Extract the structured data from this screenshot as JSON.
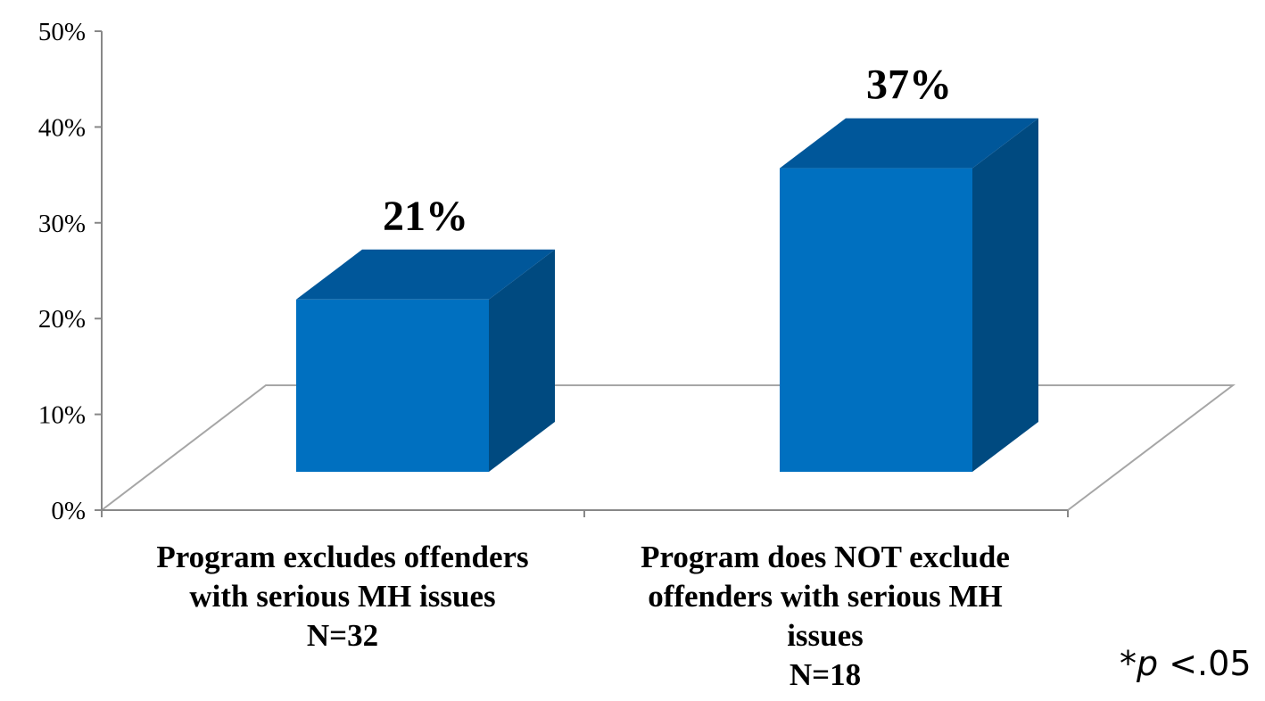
{
  "chart_data": {
    "type": "bar",
    "style": "3d-column",
    "categories": [
      [
        "Program excludes offenders",
        "with serious MH issues",
        "N=32"
      ],
      [
        "Program does NOT exclude",
        "offenders with serious MH",
        "issues",
        "N=18"
      ]
    ],
    "values": [
      21,
      37
    ],
    "data_labels": [
      "21%",
      "37%"
    ],
    "y_ticks": [
      "0%",
      "10%",
      "20%",
      "30%",
      "40%",
      "50%"
    ],
    "ylim": [
      0,
      50
    ],
    "grid": false,
    "legend": "none",
    "colors": {
      "front": "#0070C0",
      "top": "#00579A",
      "side": "#004A80",
      "floor_line": "#A6A6A6",
      "axis": "#888888"
    }
  },
  "footnote": {
    "star": "*",
    "p": "p",
    "rest": "<.05"
  }
}
